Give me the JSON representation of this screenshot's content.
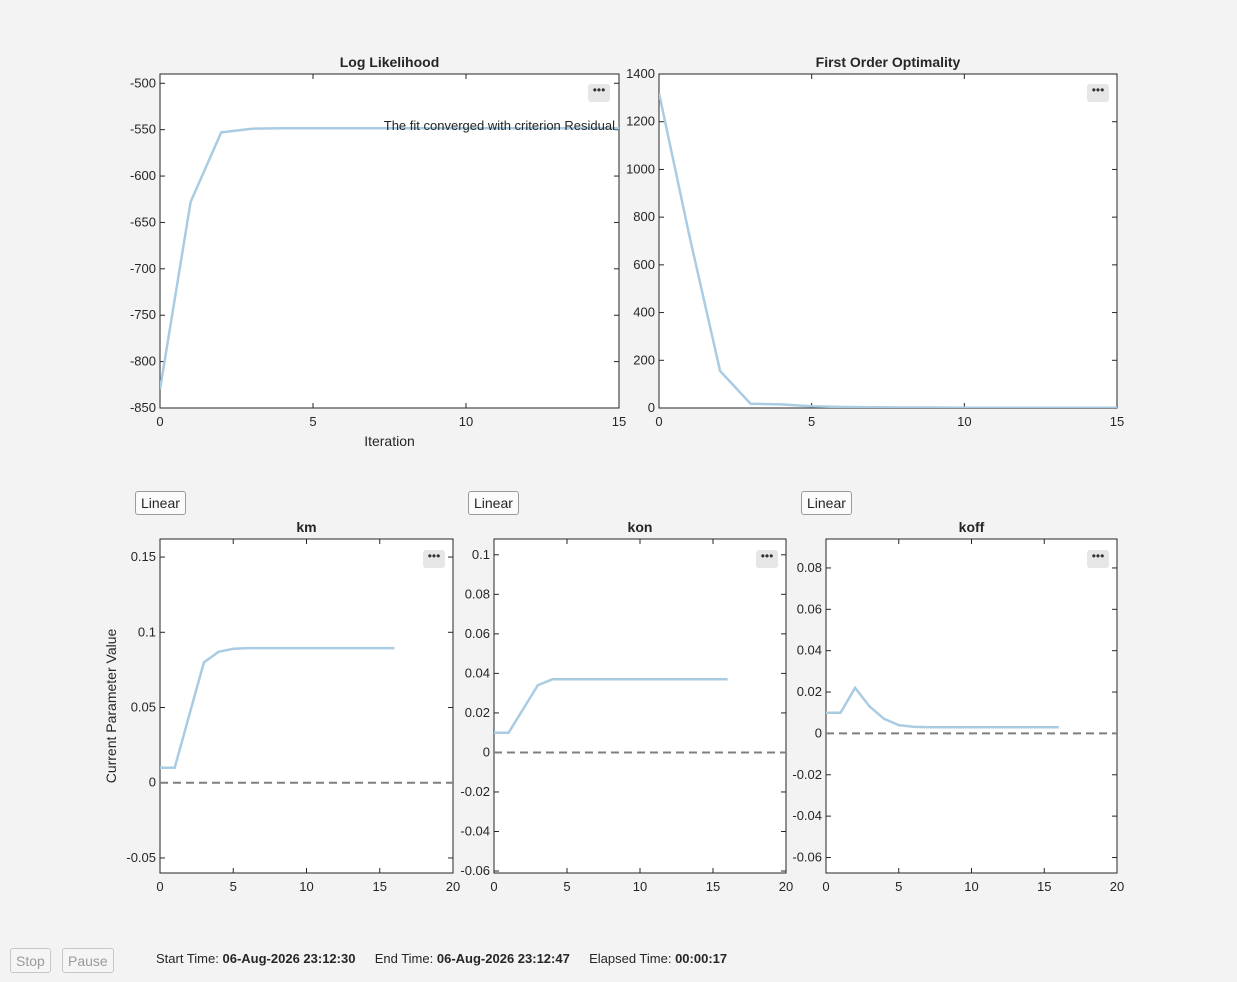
{
  "colors": {
    "line": "#a9cce3",
    "dashed": "#7f7f7f",
    "axis": "#262626",
    "background": "#f3f3f3"
  },
  "controls": {
    "stop_label": "Stop",
    "pause_label": "Pause",
    "linear_labels": [
      "Linear",
      "Linear",
      "Linear"
    ],
    "menu_icon": "ellipsis-icon"
  },
  "status": {
    "start_label": "Start Time:",
    "start_value": "06-Aug-2026 23:12:30",
    "end_label": "End Time:",
    "end_value": "06-Aug-2026 23:12:47",
    "elapsed_label": "Elapsed Time:",
    "elapsed_value": "00:00:17"
  },
  "annotation": "The fit converged with criterion Residual",
  "shared_ylabel": "Current Parameter Value",
  "chart_data": [
    {
      "id": "loglik",
      "type": "line",
      "title": "Log Likelihood",
      "xlabel": "Iteration",
      "ylabel": "",
      "xlim": [
        0,
        15
      ],
      "ylim": [
        -850,
        -490
      ],
      "xticks": [
        0,
        5,
        10,
        15
      ],
      "yticks": [
        -850,
        -800,
        -750,
        -700,
        -650,
        -600,
        -550,
        -500
      ],
      "grid": false,
      "series": [
        {
          "x": [
            0,
            1,
            2,
            3,
            4,
            5,
            6,
            7,
            8,
            9,
            10,
            11,
            12,
            13,
            14,
            15
          ],
          "y": [
            -830,
            -628,
            -553,
            -549,
            -548.5,
            -548.5,
            -548.5,
            -548.5,
            -548.5,
            -548.5,
            -548.5,
            -548.5,
            -548.5,
            -548.5,
            -548.5,
            -548.5
          ]
        }
      ]
    },
    {
      "id": "optimality",
      "type": "line",
      "title": "First Order Optimality",
      "xlabel": "",
      "ylabel": "",
      "xlim": [
        0,
        15
      ],
      "ylim": [
        0,
        1400
      ],
      "xticks": [
        0,
        5,
        10,
        15
      ],
      "yticks": [
        0,
        200,
        400,
        600,
        800,
        1000,
        1200,
        1400
      ],
      "grid": false,
      "series": [
        {
          "x": [
            0,
            1,
            2,
            3,
            4,
            5,
            6,
            7,
            8,
            9,
            10,
            11,
            12,
            13,
            14,
            15
          ],
          "y": [
            1320,
            720,
            155,
            18,
            15,
            7,
            4,
            3,
            2,
            2,
            1,
            1,
            1,
            1,
            1,
            1
          ]
        }
      ]
    },
    {
      "id": "km",
      "type": "line",
      "title": "km",
      "xlabel": "",
      "ylabel": "",
      "xlim": [
        0,
        20
      ],
      "ylim": [
        -0.06,
        0.162
      ],
      "xticks": [
        0,
        5,
        10,
        15,
        20
      ],
      "yticks": [
        -0.05,
        0,
        0.05,
        0.1,
        0.15
      ],
      "ytick_labels": [
        "-0.05",
        "0",
        "0.05",
        "0.1",
        "0.15"
      ],
      "grid": false,
      "reference_line": 0,
      "series": [
        {
          "x": [
            0,
            1,
            2,
            3,
            4,
            5,
            6,
            7,
            8,
            9,
            10,
            11,
            12,
            13,
            14,
            15,
            16
          ],
          "y": [
            0.01,
            0.01,
            0.045,
            0.08,
            0.087,
            0.089,
            0.0895,
            0.0895,
            0.0895,
            0.0895,
            0.0895,
            0.0895,
            0.0895,
            0.0895,
            0.0895,
            0.0895,
            0.0895
          ]
        }
      ]
    },
    {
      "id": "kon",
      "type": "line",
      "title": "kon",
      "xlabel": "",
      "ylabel": "",
      "xlim": [
        0,
        20
      ],
      "ylim": [
        -0.061,
        0.108
      ],
      "xticks": [
        0,
        5,
        10,
        15,
        20
      ],
      "yticks": [
        -0.06,
        -0.04,
        -0.02,
        0,
        0.02,
        0.04,
        0.06,
        0.08,
        0.1
      ],
      "ytick_labels": [
        "-0.06",
        "-0.04",
        "-0.02",
        "0",
        "0.02",
        "0.04",
        "0.06",
        "0.08",
        "0.1"
      ],
      "grid": false,
      "reference_line": 0,
      "series": [
        {
          "x": [
            0,
            1,
            2,
            3,
            4,
            5,
            6,
            7,
            8,
            9,
            10,
            11,
            12,
            13,
            14,
            15,
            16
          ],
          "y": [
            0.01,
            0.01,
            0.022,
            0.034,
            0.037,
            0.037,
            0.037,
            0.037,
            0.037,
            0.037,
            0.037,
            0.037,
            0.037,
            0.037,
            0.037,
            0.037,
            0.037
          ]
        }
      ]
    },
    {
      "id": "koff",
      "type": "line",
      "title": "koff",
      "xlabel": "",
      "ylabel": "",
      "xlim": [
        0,
        20
      ],
      "ylim": [
        -0.0675,
        0.094
      ],
      "xticks": [
        0,
        5,
        10,
        15,
        20
      ],
      "yticks": [
        -0.06,
        -0.04,
        -0.02,
        0,
        0.02,
        0.04,
        0.06,
        0.08
      ],
      "ytick_labels": [
        "-0.06",
        "-0.04",
        "-0.02",
        "0",
        "0.02",
        "0.04",
        "0.06",
        "0.08"
      ],
      "grid": false,
      "reference_line": 0,
      "series": [
        {
          "x": [
            0,
            1,
            2,
            3,
            4,
            5,
            6,
            7,
            8,
            9,
            10,
            11,
            12,
            13,
            14,
            15,
            16
          ],
          "y": [
            0.01,
            0.01,
            0.022,
            0.013,
            0.007,
            0.004,
            0.0032,
            0.003,
            0.003,
            0.003,
            0.003,
            0.003,
            0.003,
            0.003,
            0.003,
            0.003,
            0.003
          ]
        }
      ]
    }
  ]
}
